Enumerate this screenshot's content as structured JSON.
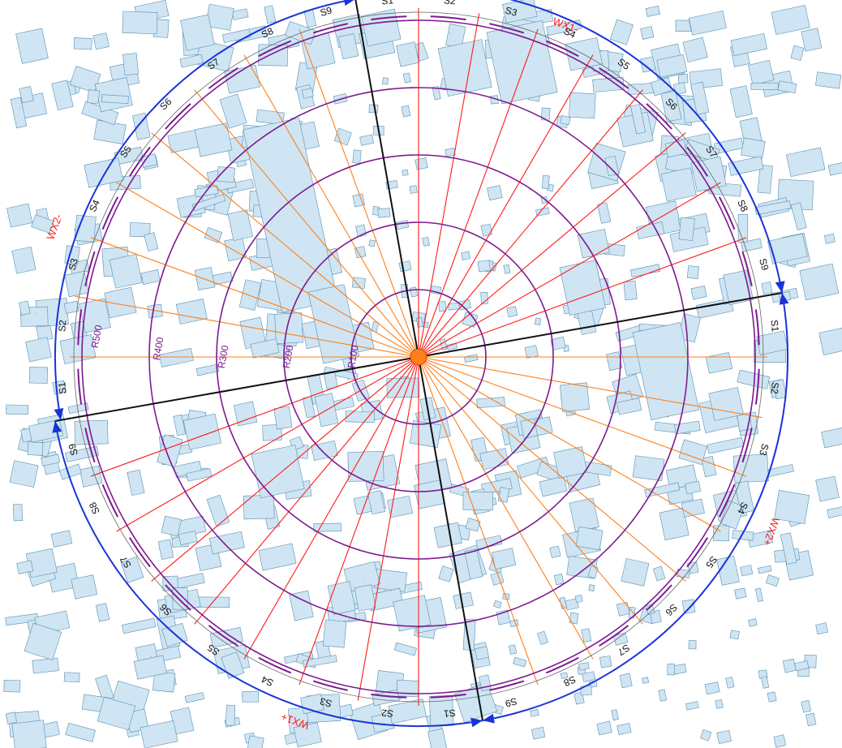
{
  "map": {
    "rings": [
      "R100",
      "R200",
      "R300",
      "R400",
      "R500"
    ],
    "wind_labels": {
      "wx1_plus": "WX1+",
      "wx1_minus": "WX1-",
      "wx2_plus": "WX2+",
      "wx2_minus": "WX2-"
    },
    "sector_labels": {
      "top": [
        "S1",
        "S2",
        "S3",
        "S4",
        "S5",
        "S6",
        "S7",
        "S8",
        "S9"
      ],
      "right": [
        "S1",
        "S2",
        "S3",
        "S4",
        "S5",
        "S6",
        "S7",
        "S8",
        "S9"
      ],
      "bottom": [
        "S1",
        "S2",
        "S3",
        "S4",
        "S5",
        "S6",
        "S7",
        "S8",
        "S9"
      ],
      "left": [
        "S1",
        "S2",
        "S3",
        "S4",
        "S5",
        "S6",
        "S7",
        "S8",
        "S9"
      ]
    },
    "colors": {
      "ring": "#7d1a8f",
      "ray_inner": "#ff1a1a",
      "ray_outer": "#ff7f1a",
      "axis": "#111111",
      "arrow_arc": "#1a33d9",
      "building_fill": "#cfe5f3",
      "building_stroke": "#5b8fb0",
      "center": "#ff7f1a"
    }
  }
}
